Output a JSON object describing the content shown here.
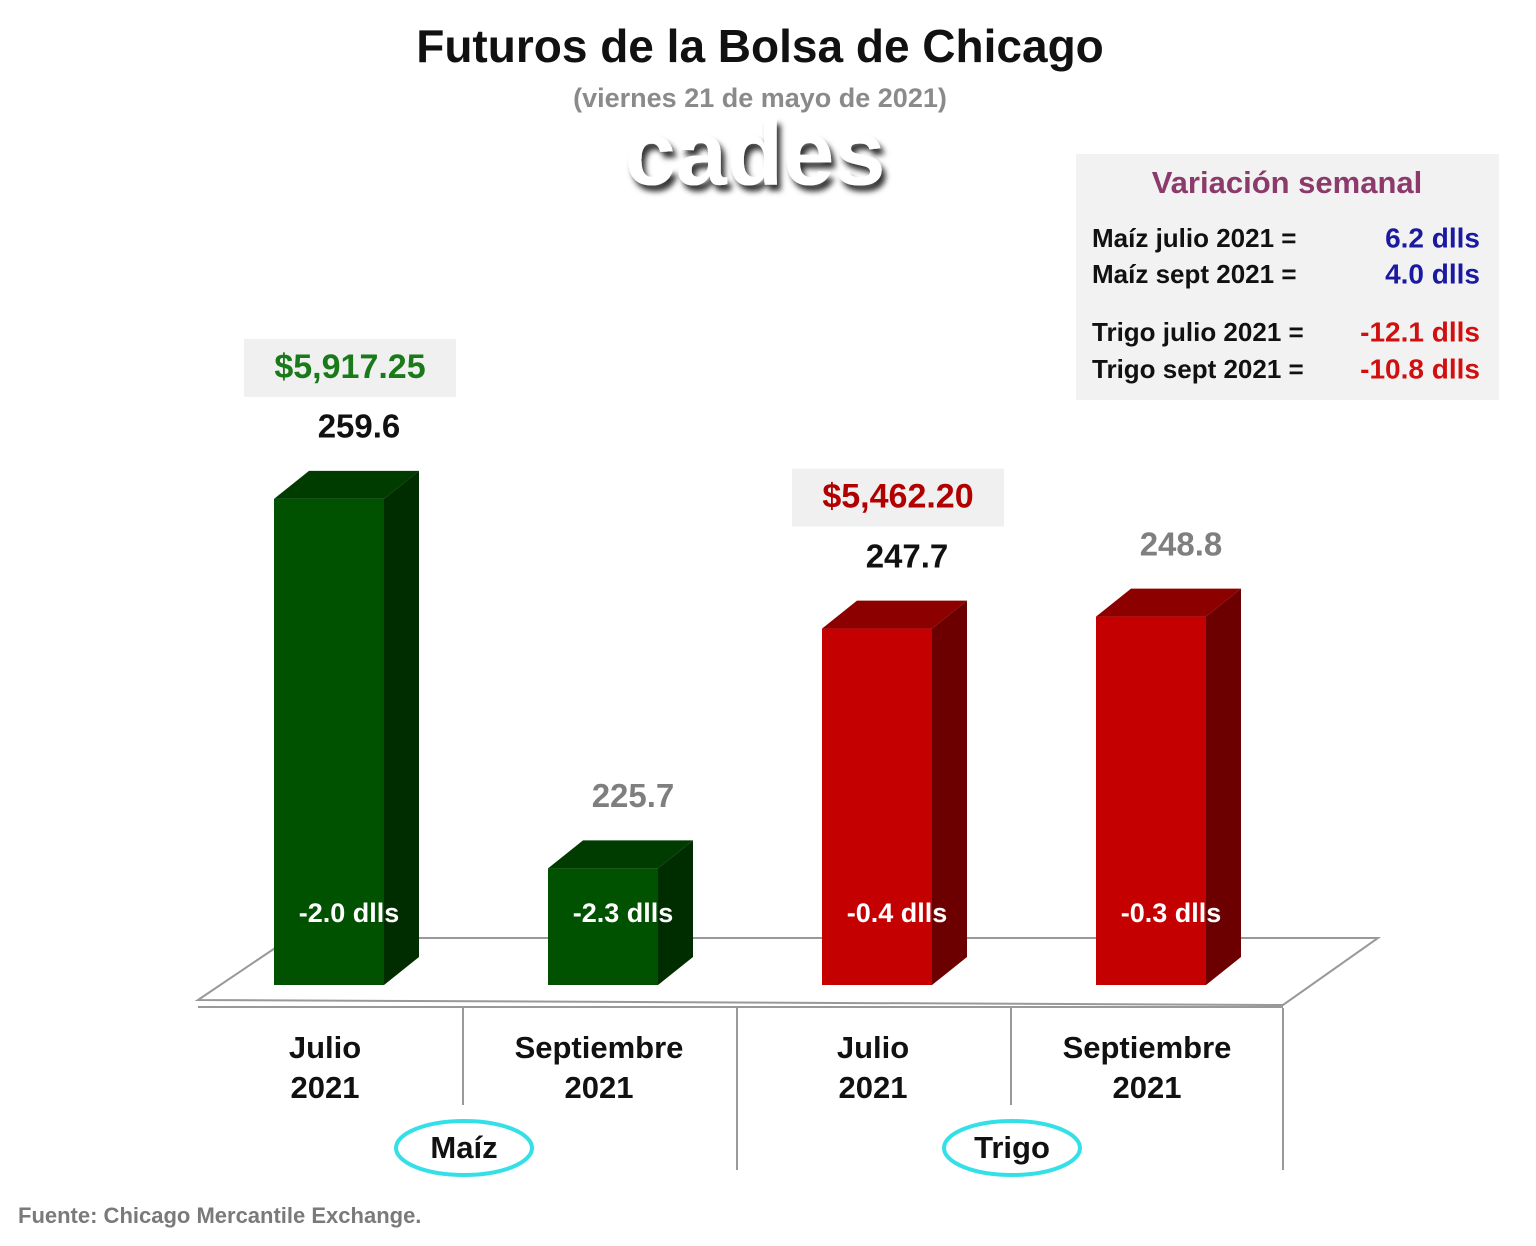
{
  "chart_data": {
    "type": "bar3d",
    "title": "Futuros de la Bolsa de Chicago",
    "subtitle": "(viernes 21 de mayo de 2021)",
    "logo": "cades",
    "categories": [
      [
        "Julio",
        "2021"
      ],
      [
        "Septiembre",
        "2021"
      ],
      [
        "Julio",
        "2021"
      ],
      [
        "Septiembre",
        "2021"
      ]
    ],
    "groups": [
      "Maíz",
      "Trigo"
    ],
    "values": [
      259.6,
      225.7,
      247.7,
      248.8
    ],
    "colors": [
      "#005200",
      "#005200",
      "#c40000",
      "#c40000"
    ],
    "value_label_colors": [
      "#111111",
      "#7f7f7f",
      "#111111",
      "#7f7f7f"
    ],
    "annotations": [
      "-2.0 dlls",
      "-2.3 dlls",
      "-0.4 dlls",
      "-0.3 dlls"
    ],
    "price_labels": [
      "$5,917.25",
      null,
      "$5,462.20",
      null
    ],
    "price_label_colors": [
      "#1a7a1a",
      null,
      "#b00000",
      null
    ],
    "ylim": [
      215,
      265
    ],
    "weekly_change": {
      "title": "Variación semanal",
      "rows": [
        {
          "label": "Maíz julio 2021  =",
          "value": "6.2 dlls",
          "color": "#1a1aa0"
        },
        {
          "label": "Maíz sept 2021  =",
          "value": "4.0 dlls",
          "color": "#1a1aa0"
        },
        {
          "label": "Trigo julio 2021 =",
          "value": "-12.1 dlls",
          "color": "#d01010"
        },
        {
          "label": "Trigo sept 2021 =",
          "value": "-10.8 dlls",
          "color": "#d01010"
        }
      ]
    },
    "source": "Fuente: Chicago Mercantile Exchange."
  }
}
